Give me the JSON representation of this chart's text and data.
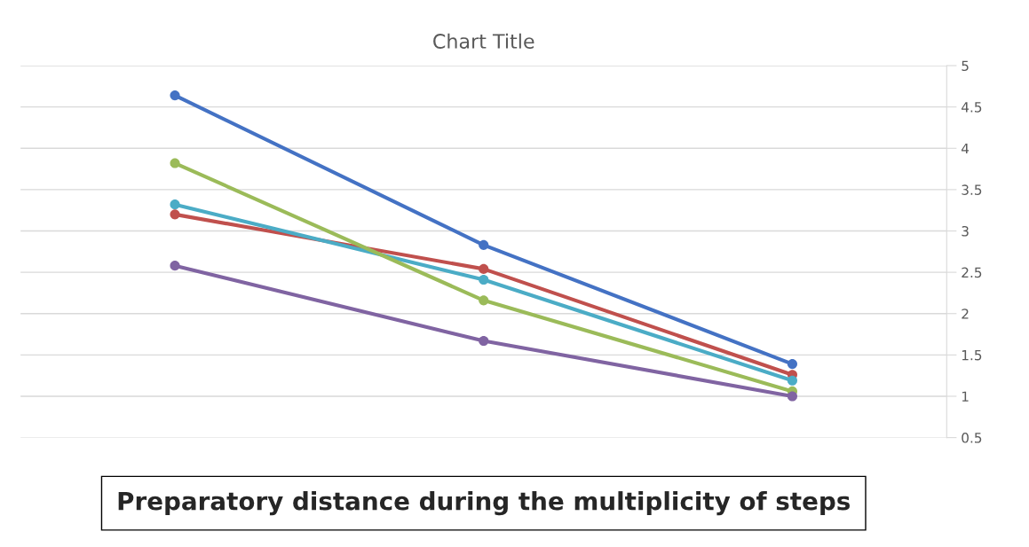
{
  "chart_data": {
    "type": "line",
    "title": "Chart Title",
    "categories": [
      null,
      null,
      null
    ],
    "series": [
      {
        "color": "#4472c4",
        "values": [
          4.64,
          2.83,
          1.39
        ]
      },
      {
        "color": "#c0504d",
        "values": [
          3.2,
          2.54,
          1.26
        ]
      },
      {
        "color": "#4bacc6",
        "values": [
          3.32,
          2.41,
          1.19
        ]
      },
      {
        "color": "#9bbb59",
        "values": [
          3.82,
          2.16,
          1.06
        ]
      },
      {
        "color": "#8064a2",
        "values": [
          2.58,
          1.67,
          1.0
        ]
      }
    ],
    "ylim": [
      0.5,
      5
    ],
    "yticks": [
      0.5,
      1,
      1.5,
      2,
      2.5,
      3,
      3.5,
      4,
      4.5,
      5
    ],
    "grid": "y",
    "marker": "circle",
    "line_style": "solid",
    "annotations": [
      "Preparatory distance during the multiplicity of steps"
    ]
  }
}
